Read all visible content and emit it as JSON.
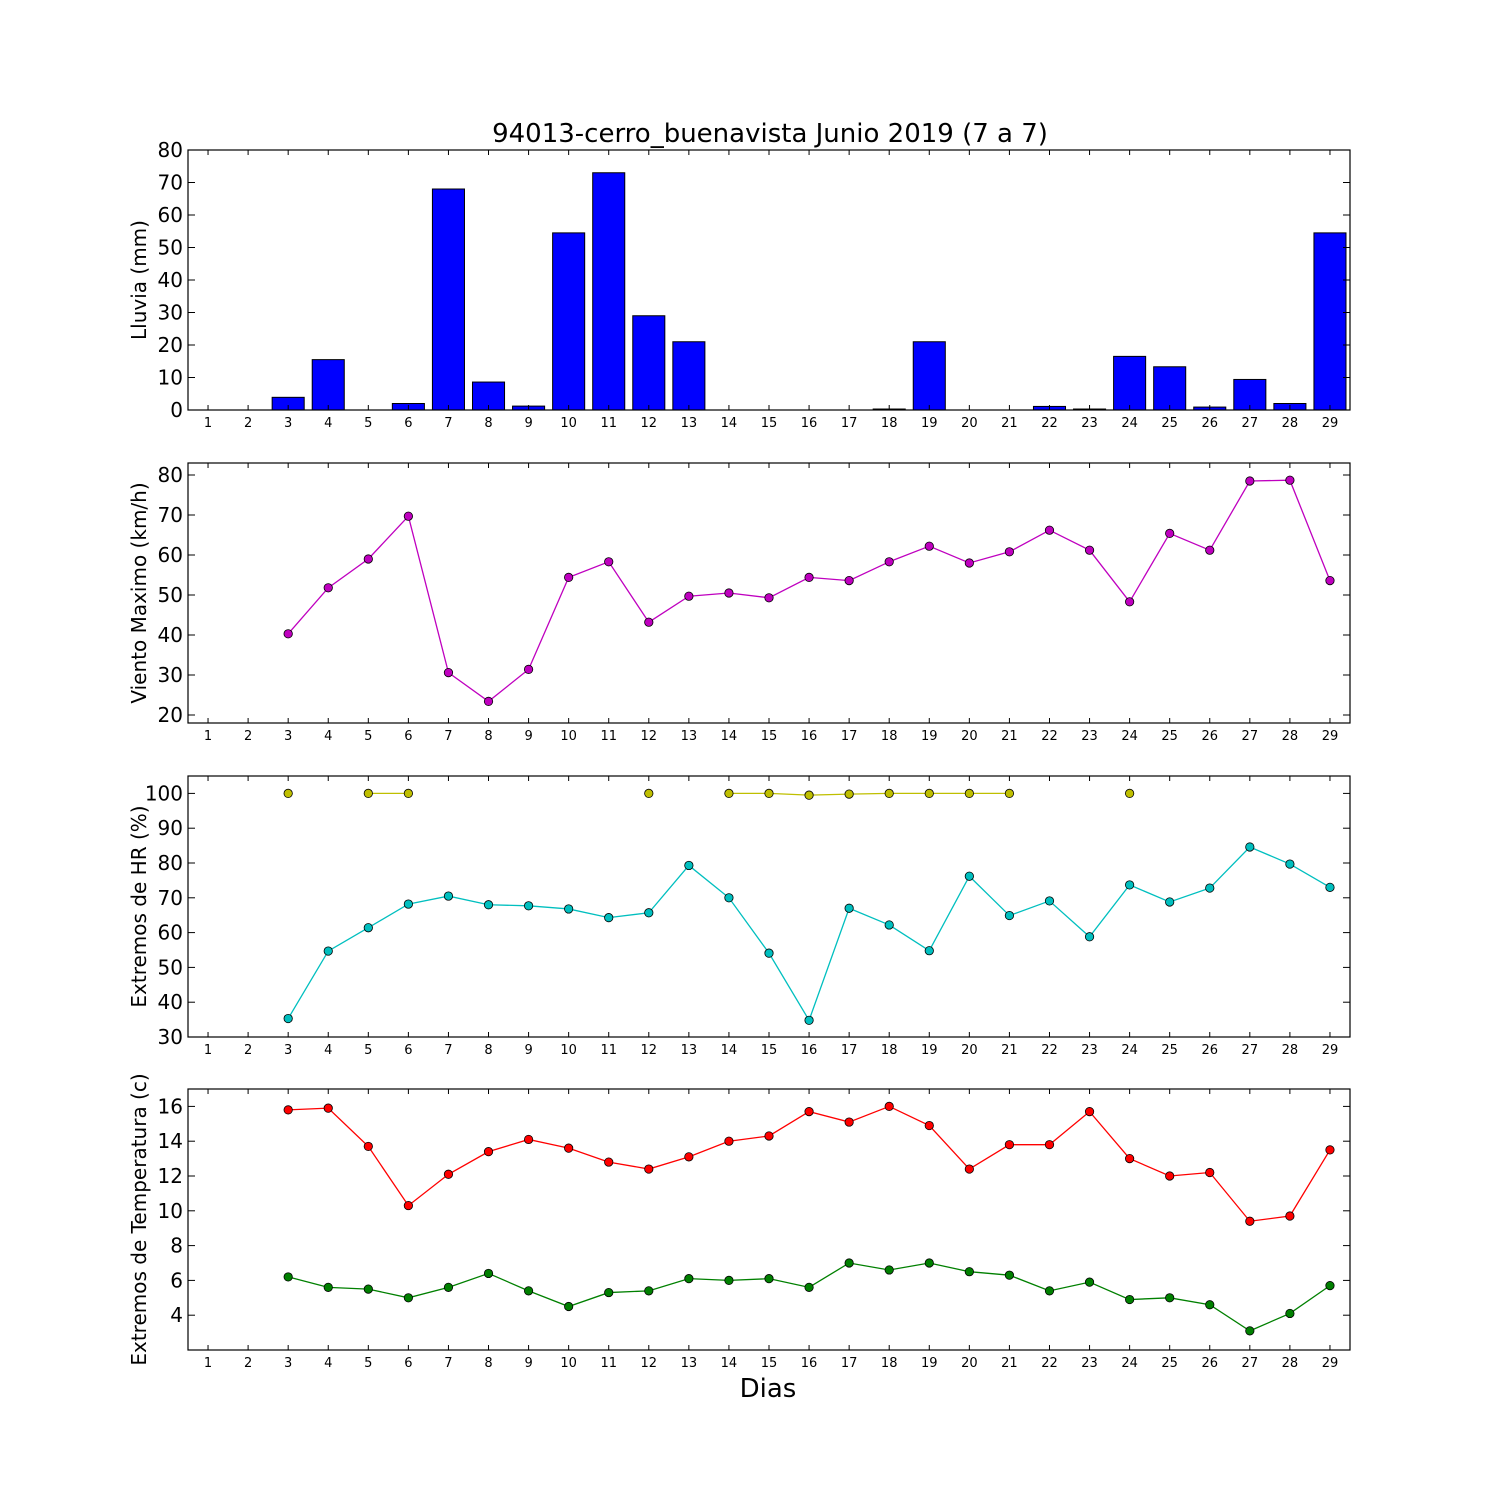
{
  "figure": {
    "title": "94013-cerro_buenavista Junio 2019  (7 a 7)",
    "xlabel": "Dias"
  },
  "chart_data": [
    {
      "type": "bar",
      "name": "lluvia",
      "ylabel": "Lluvia (mm)",
      "ylim": [
        0,
        80
      ],
      "yticks": [
        0,
        10,
        20,
        30,
        40,
        50,
        60,
        70,
        80
      ],
      "categories": [
        1,
        2,
        3,
        4,
        5,
        6,
        7,
        8,
        9,
        10,
        11,
        12,
        13,
        14,
        15,
        16,
        17,
        18,
        19,
        20,
        21,
        22,
        23,
        24,
        25,
        26,
        27,
        28,
        29
      ],
      "values": [
        0,
        0,
        3.9,
        15.5,
        0,
        2,
        68,
        8.6,
        1.2,
        54.5,
        73,
        29,
        21,
        0,
        0,
        0,
        0,
        0.3,
        21,
        0,
        0,
        1.1,
        0.3,
        16.5,
        13.3,
        0.9,
        9.4,
        2,
        54.5
      ],
      "color": "#0000ff",
      "grid": false
    },
    {
      "type": "line",
      "name": "viento",
      "ylabel": "Viento Maximo (km/h)",
      "ylim": [
        18,
        83
      ],
      "yticks": [
        20,
        30,
        40,
        50,
        60,
        70,
        80
      ],
      "x": [
        1,
        2,
        3,
        4,
        5,
        6,
        7,
        8,
        9,
        10,
        11,
        12,
        13,
        14,
        15,
        16,
        17,
        18,
        19,
        20,
        21,
        22,
        23,
        24,
        25,
        26,
        27,
        28,
        29
      ],
      "series": [
        {
          "color": "#bf00bf",
          "values": [
            null,
            null,
            40.3,
            51.8,
            59,
            69.7,
            30.6,
            23.4,
            31.4,
            54.4,
            58.3,
            43.2,
            49.7,
            50.5,
            49.3,
            54.4,
            53.6,
            58.3,
            62.2,
            58,
            60.8,
            66.2,
            61.2,
            48.3,
            65.4,
            61.2,
            78.5,
            78.7,
            53.6
          ]
        }
      ],
      "grid": false
    },
    {
      "type": "line",
      "name": "humedad",
      "ylabel": "Extremos de HR (%)",
      "ylim": [
        30,
        105
      ],
      "yticks": [
        30,
        40,
        50,
        60,
        70,
        80,
        90,
        100
      ],
      "x": [
        1,
        2,
        3,
        4,
        5,
        6,
        7,
        8,
        9,
        10,
        11,
        12,
        13,
        14,
        15,
        16,
        17,
        18,
        19,
        20,
        21,
        22,
        23,
        24,
        25,
        26,
        27,
        28,
        29
      ],
      "series": [
        {
          "color": "#bfbf00",
          "values": [
            null,
            null,
            100,
            null,
            100,
            100,
            null,
            null,
            null,
            null,
            null,
            100,
            null,
            100,
            100,
            99.5,
            99.8,
            100,
            100,
            100,
            100,
            null,
            null,
            100,
            null,
            null,
            null,
            null,
            null
          ]
        },
        {
          "color": "#00bfbf",
          "values": [
            null,
            null,
            35.3,
            54.7,
            61.4,
            68.2,
            70.5,
            68,
            67.7,
            66.8,
            64.3,
            65.7,
            79.3,
            70,
            54.1,
            34.8,
            67,
            62.2,
            54.8,
            76.2,
            64.9,
            69.1,
            58.8,
            73.7,
            68.8,
            72.8,
            84.6,
            79.7,
            73
          ]
        }
      ],
      "grid": false
    },
    {
      "type": "line",
      "name": "temperatura",
      "ylabel": "Extremos de Temperatura (c)",
      "ylim": [
        2,
        17
      ],
      "yticks": [
        4,
        6,
        8,
        10,
        12,
        14,
        16
      ],
      "x": [
        1,
        2,
        3,
        4,
        5,
        6,
        7,
        8,
        9,
        10,
        11,
        12,
        13,
        14,
        15,
        16,
        17,
        18,
        19,
        20,
        21,
        22,
        23,
        24,
        25,
        26,
        27,
        28,
        29
      ],
      "series": [
        {
          "color": "#ff0000",
          "values": [
            null,
            null,
            15.8,
            15.9,
            13.7,
            10.3,
            12.1,
            13.4,
            14.1,
            13.6,
            12.8,
            12.4,
            13.1,
            14,
            14.3,
            15.7,
            15.1,
            16,
            14.9,
            12.4,
            13.8,
            13.8,
            15.7,
            13,
            12,
            12.2,
            9.4,
            9.7,
            13.5
          ]
        },
        {
          "color": "#008000",
          "values": [
            null,
            null,
            6.2,
            5.6,
            5.5,
            5,
            5.6,
            6.4,
            5.4,
            4.5,
            5.3,
            5.4,
            6.1,
            6,
            6.1,
            5.6,
            7,
            6.6,
            7,
            6.5,
            6.3,
            5.4,
            5.9,
            4.9,
            5,
            4.6,
            3.1,
            4.1,
            5.7
          ]
        }
      ],
      "grid": false
    }
  ]
}
